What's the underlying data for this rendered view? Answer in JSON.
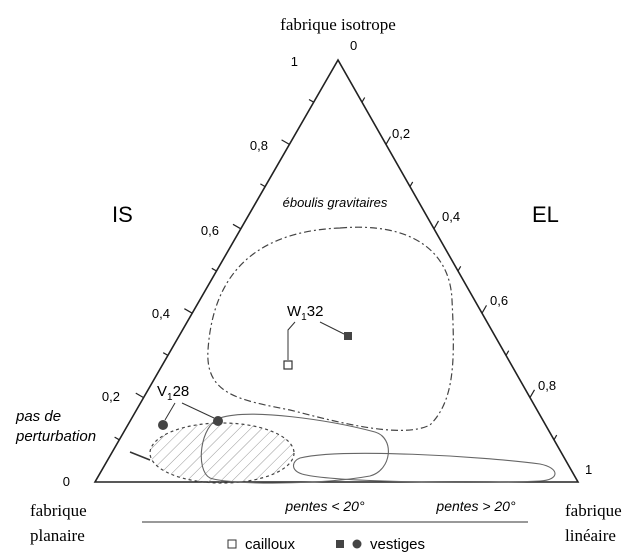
{
  "labels": {
    "top": "fabrique isotrope",
    "top_zero": "0",
    "left_ticks": [
      "1",
      "0,8",
      "0,6",
      "0,4",
      "0,2",
      "0"
    ],
    "right_ticks": [
      "0,2",
      "0,4",
      "0,6",
      "0,8",
      "1"
    ],
    "is": "IS",
    "el": "EL",
    "eboulis": "éboulis gravitaires",
    "w": [
      "W",
      "1",
      "32"
    ],
    "v": [
      "V",
      "1",
      "28"
    ],
    "pas_de": [
      "pas de",
      "perturbation"
    ],
    "planaire": [
      "fabrique",
      "planaire"
    ],
    "lineaire": [
      "fabrique",
      "linéaire"
    ],
    "pentes_lt": "pentes < 20°",
    "pentes_gt": "pentes > 20°",
    "cailloux": "cailloux",
    "vestiges": "vestiges"
  }
}
